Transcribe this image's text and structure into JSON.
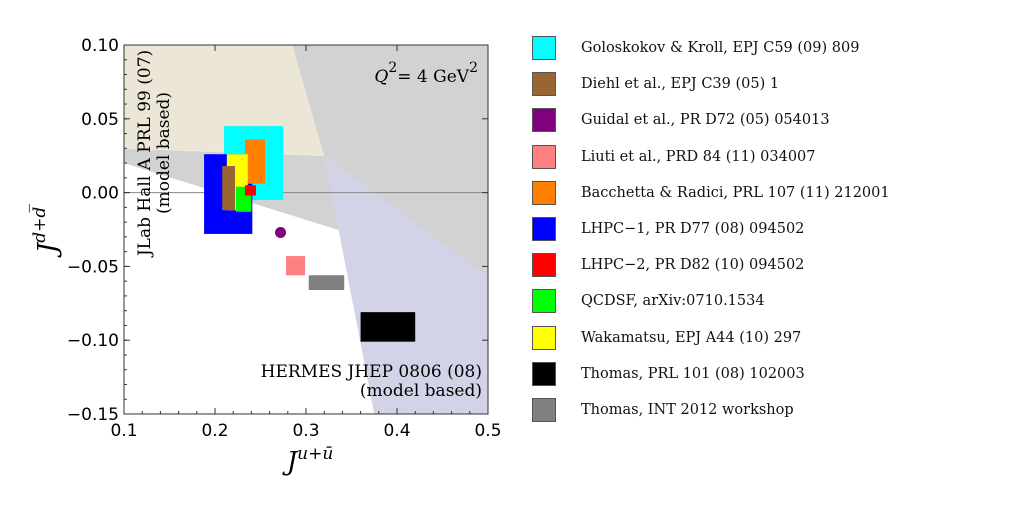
{
  "chart_data": {
    "type": "scatter",
    "xlim": [
      0.1,
      0.5
    ],
    "ylim": [
      -0.15,
      0.1
    ],
    "xticks": [
      "0.1",
      "0.2",
      "0.3",
      "0.4",
      "0.5"
    ],
    "yticks": [
      "0.10",
      "0.05",
      "0.00",
      "−0.05",
      "−0.10",
      "−0.15"
    ],
    "xlabel": {
      "base": "J",
      "sup": "u+ū"
    },
    "ylabel": {
      "base": "J",
      "sup": "d+d̅"
    },
    "annotation": {
      "base": "Q",
      "sup1": "2",
      "mid": "= 4 GeV",
      "sup2": "2"
    },
    "regions": [
      {
        "name": "JLab Hall A",
        "label_lines": [
          "JLab Hall A PRL 99 (07)",
          "(model based)"
        ],
        "color": "#ebe6d5"
      },
      {
        "name": "HERMES",
        "label_lines": [
          "HERMES JHEP 0806 (08)",
          "(model based)"
        ],
        "color": "#d3d3e8"
      }
    ],
    "series": [
      {
        "name": "Goloskokov & Kroll, EPJ C59 (09) 809",
        "color": "#00ffff",
        "x": [
          0.21,
          0.275
        ],
        "y": [
          -0.005,
          0.045
        ]
      },
      {
        "name": "Diehl et al., EPJ C39 (05) 1",
        "color": "#996633",
        "x": [
          0.208,
          0.222
        ],
        "y": [
          -0.012,
          0.018
        ]
      },
      {
        "name": "Guidal et al., PR D72 (05) 054013",
        "color": "#800080",
        "x": [
          0.272
        ],
        "y": [
          -0.027
        ]
      },
      {
        "name": "Liuti et al., PRD 84 (11) 034007",
        "color": "#ff8080",
        "x": [
          0.278,
          0.299
        ],
        "y": [
          -0.056,
          -0.043
        ]
      },
      {
        "name": "Bacchetta & Radici, PRL 107 (11) 212001",
        "color": "#ff8000",
        "x": [
          0.233,
          0.255
        ],
        "y": [
          0.006,
          0.036
        ]
      },
      {
        "name": "LHPC−1, PR D77 (08) 094502",
        "color": "#0000ff",
        "x": [
          0.188,
          0.241
        ],
        "y": [
          -0.028,
          0.026
        ]
      },
      {
        "name": "LHPC−2, PR D82 (10) 094502",
        "color": "#ff0000",
        "x": [
          0.233,
          0.245
        ],
        "y": [
          -0.002,
          0.005
        ]
      },
      {
        "name": "QCDSF, arXiv:0710.1534",
        "color": "#00ff00",
        "x": [
          0.223,
          0.24
        ],
        "y": [
          -0.013,
          0.004
        ]
      },
      {
        "name": "Wakamatsu, EPJ A44 (10) 297",
        "color": "#ffff00",
        "x": [
          0.213,
          0.236
        ],
        "y": [
          -0.012,
          0.026
        ]
      },
      {
        "name": "Thomas, PRL 101 (08) 102003",
        "color": "#000000",
        "x": [
          0.36,
          0.42
        ],
        "y": [
          -0.101,
          -0.081
        ]
      },
      {
        "name": "Thomas, INT 2012 workshop",
        "color": "#808080",
        "x": [
          0.303,
          0.342
        ],
        "y": [
          -0.066,
          -0.056
        ]
      }
    ]
  }
}
